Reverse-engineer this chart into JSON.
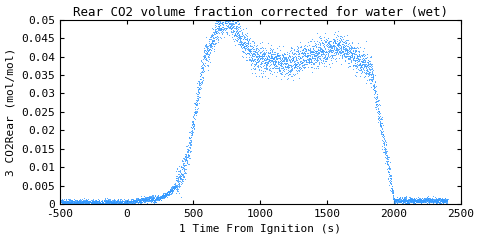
{
  "title": "Rear CO2 volume fraction corrected for water (wet)",
  "xlabel": "1 Time From Ignition (s)",
  "ylabel": "3 CO2Rear (mol/mol)",
  "xlim": [
    -500,
    2500
  ],
  "ylim": [
    0,
    0.05
  ],
  "xticks": [
    -500,
    0,
    500,
    1000,
    1500,
    2000,
    2500
  ],
  "yticks": [
    0,
    0.005,
    0.01,
    0.015,
    0.02,
    0.025,
    0.03,
    0.035,
    0.04,
    0.045,
    0.05
  ],
  "ytick_labels": [
    "0",
    "0.005",
    "0.01",
    "0.015",
    "0.02",
    "0.025",
    "0.03",
    "0.035",
    "0.04",
    "0.045",
    "0.05"
  ],
  "line_color": "#3399ff",
  "bg_color": "#ffffff",
  "title_fontsize": 9,
  "label_fontsize": 8,
  "tick_fontsize": 8
}
